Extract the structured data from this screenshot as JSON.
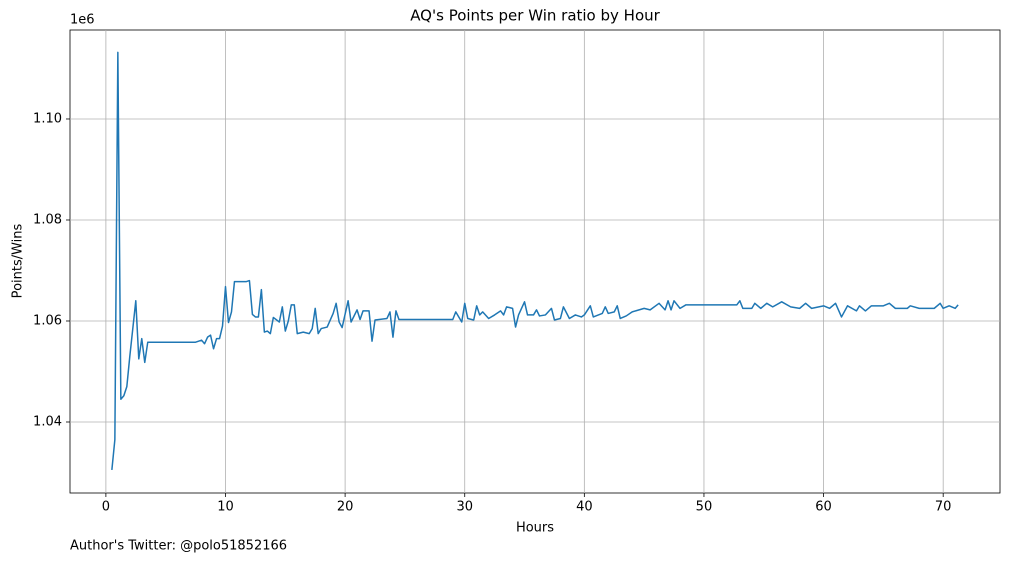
{
  "chart_data": {
    "type": "line",
    "title": "AQ's Points per Win ratio by Hour",
    "xlabel": "Hours",
    "ylabel": "Points/Wins",
    "y_offset_text": "1e6",
    "footnote": "Author's Twitter: @polo51852166",
    "grid": true,
    "xlim": [
      -3.0,
      74.75
    ],
    "ylim": [
      1025940,
      1117620
    ],
    "xticks": [
      0,
      10,
      20,
      30,
      40,
      50,
      60,
      70
    ],
    "yticks": [
      {
        "value": 1040000,
        "label": "1.04"
      },
      {
        "value": 1060000,
        "label": "1.06"
      },
      {
        "value": 1080000,
        "label": "1.08"
      },
      {
        "value": 1100000,
        "label": "1.10"
      }
    ],
    "x": [
      0.5,
      0.75,
      1.0,
      1.25,
      1.5,
      1.75,
      2.0,
      2.5,
      2.75,
      3.0,
      3.25,
      3.5,
      7.5,
      8.0,
      8.25,
      8.5,
      8.75,
      9.0,
      9.25,
      9.5,
      9.75,
      10.0,
      10.25,
      10.5,
      10.75,
      11.5,
      11.75,
      12.0,
      12.25,
      12.5,
      12.75,
      13.0,
      13.25,
      13.5,
      13.75,
      14.0,
      14.5,
      14.75,
      15.0,
      15.25,
      15.5,
      15.75,
      16.0,
      16.5,
      17.0,
      17.25,
      17.5,
      17.75,
      18.0,
      18.5,
      19.0,
      19.25,
      19.5,
      19.75,
      20.25,
      20.5,
      21.0,
      21.25,
      21.5,
      22.0,
      22.25,
      22.5,
      23.5,
      23.75,
      24.0,
      24.25,
      24.5,
      29.0,
      29.25,
      29.75,
      30.0,
      30.25,
      30.75,
      31.0,
      31.25,
      31.5,
      32.0,
      32.5,
      33.0,
      33.25,
      33.5,
      34.0,
      34.25,
      34.5,
      35.0,
      35.25,
      35.75,
      36.0,
      36.25,
      36.75,
      37.25,
      37.5,
      38.0,
      38.25,
      38.75,
      39.25,
      39.75,
      40.0,
      40.5,
      40.75,
      41.5,
      41.75,
      42.0,
      42.5,
      42.75,
      43.0,
      43.5,
      44.0,
      45.0,
      45.5,
      46.25,
      46.75,
      47.0,
      47.25,
      47.5,
      48.0,
      48.5,
      52.75,
      53.0,
      53.25,
      54.0,
      54.25,
      54.75,
      55.25,
      55.75,
      56.5,
      57.25,
      58.0,
      58.5,
      59.0,
      60.0,
      60.5,
      61.0,
      61.5,
      62.0,
      62.75,
      63.0,
      63.5,
      64.0,
      65.0,
      65.5,
      66.0,
      67.0,
      67.25,
      68.0,
      69.25,
      69.75,
      70.0,
      70.5,
      71.0,
      71.25
    ],
    "series": [
      {
        "name": "Points/Wins",
        "color": "#1f77b4",
        "values": [
          1030500,
          1036500,
          1113200,
          1044500,
          1045200,
          1047000,
          1053000,
          1064000,
          1052500,
          1056500,
          1051800,
          1055800,
          1055800,
          1056200,
          1055500,
          1056800,
          1057200,
          1054500,
          1056500,
          1056500,
          1059000,
          1066800,
          1059700,
          1061800,
          1067800,
          1067800,
          1067800,
          1068000,
          1061300,
          1060800,
          1060800,
          1066200,
          1057800,
          1058000,
          1057500,
          1060700,
          1059800,
          1062800,
          1058000,
          1060000,
          1063200,
          1063200,
          1057500,
          1057800,
          1057500,
          1058500,
          1062500,
          1057500,
          1058500,
          1058800,
          1061500,
          1063500,
          1059800,
          1058700,
          1064000,
          1059800,
          1062200,
          1060300,
          1062000,
          1062000,
          1056000,
          1060200,
          1060500,
          1061800,
          1056800,
          1062000,
          1060300,
          1060300,
          1061800,
          1059800,
          1063500,
          1060500,
          1060200,
          1063000,
          1061200,
          1061800,
          1060500,
          1061200,
          1062000,
          1061200,
          1062800,
          1062500,
          1058800,
          1061200,
          1063800,
          1061200,
          1061200,
          1062200,
          1061000,
          1061200,
          1062500,
          1060200,
          1060500,
          1062800,
          1060500,
          1061200,
          1060800,
          1061200,
          1063000,
          1060800,
          1061500,
          1062800,
          1061500,
          1061800,
          1063000,
          1060500,
          1061000,
          1061800,
          1062500,
          1062200,
          1063500,
          1062200,
          1064000,
          1062200,
          1064000,
          1062500,
          1063200,
          1063200,
          1064000,
          1062500,
          1062500,
          1063500,
          1062500,
          1063500,
          1062800,
          1063800,
          1062800,
          1062500,
          1063500,
          1062500,
          1063000,
          1062500,
          1063500,
          1060800,
          1063000,
          1062000,
          1063000,
          1062000,
          1063000,
          1063000,
          1063500,
          1062500,
          1062500,
          1063000,
          1062500,
          1062500,
          1063500,
          1062500,
          1063000,
          1062500,
          1063200
        ]
      }
    ]
  }
}
